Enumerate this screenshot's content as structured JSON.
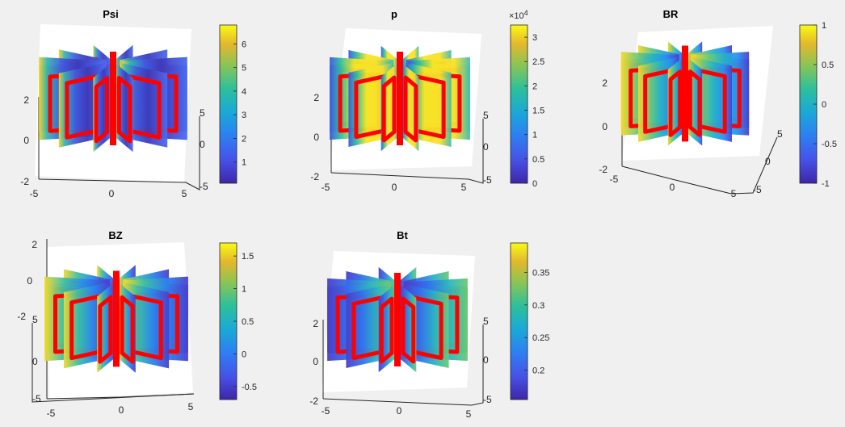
{
  "figure": {
    "background": "#f0f0f0",
    "ring_color": "#ff0000"
  },
  "chart_data": [
    {
      "type": "surface3d",
      "title": "Psi",
      "x_ticks": [
        "-5",
        "0",
        "5"
      ],
      "y_ticks": [
        "-5",
        "0",
        "5"
      ],
      "z_ticks": [
        "-2",
        "0",
        "2"
      ],
      "colorbar": {
        "range": [
          0.1,
          6.8
        ],
        "ticks": [
          "1",
          "2",
          "3",
          "4",
          "5",
          "6"
        ],
        "exponent": ""
      },
      "panel_count": 12,
      "face_style": "psi"
    },
    {
      "type": "surface3d",
      "title": "p",
      "x_ticks": [
        "-5",
        "0",
        "5"
      ],
      "y_ticks": [
        "-5",
        "0",
        "5"
      ],
      "z_ticks": [
        "-2",
        "0",
        "2"
      ],
      "colorbar": {
        "range": [
          0,
          3.25
        ],
        "ticks": [
          "0",
          "0.5",
          "1",
          "1.5",
          "2",
          "2.5",
          "3"
        ],
        "exponent": "4"
      },
      "panel_count": 12,
      "face_style": "p"
    },
    {
      "type": "surface3d",
      "title": "BR",
      "x_ticks": [
        "-5",
        "0",
        "5"
      ],
      "y_ticks": [
        "-5",
        "0",
        "5"
      ],
      "z_ticks": [
        "-2",
        "0",
        "2"
      ],
      "colorbar": {
        "range": [
          -1,
          1
        ],
        "ticks": [
          "-1",
          "-0.5",
          "0",
          "0.5",
          "1"
        ],
        "exponent": ""
      },
      "panel_count": 12,
      "face_style": "br"
    },
    {
      "type": "surface3d",
      "title": "BZ",
      "x_ticks": [
        "-5",
        "0",
        "5"
      ],
      "y_ticks": [
        "-5",
        "0",
        "5"
      ],
      "z_ticks": [
        "-2",
        "0",
        "2"
      ],
      "colorbar": {
        "range": [
          -0.7,
          1.7
        ],
        "ticks": [
          "-0.5",
          "0",
          "0.5",
          "1",
          "1.5"
        ],
        "exponent": ""
      },
      "panel_count": 12,
      "face_style": "bz"
    },
    {
      "type": "surface3d",
      "title": "Bt",
      "x_ticks": [
        "-5",
        "0",
        "5"
      ],
      "y_ticks": [
        "-5",
        "0",
        "5"
      ],
      "z_ticks": [
        "-2",
        "0",
        "2"
      ],
      "colorbar": {
        "range": [
          0.155,
          0.395
        ],
        "ticks": [
          "0.2",
          "0.25",
          "0.3",
          "0.35"
        ],
        "exponent": ""
      },
      "panel_count": 12,
      "face_style": "bt"
    }
  ]
}
